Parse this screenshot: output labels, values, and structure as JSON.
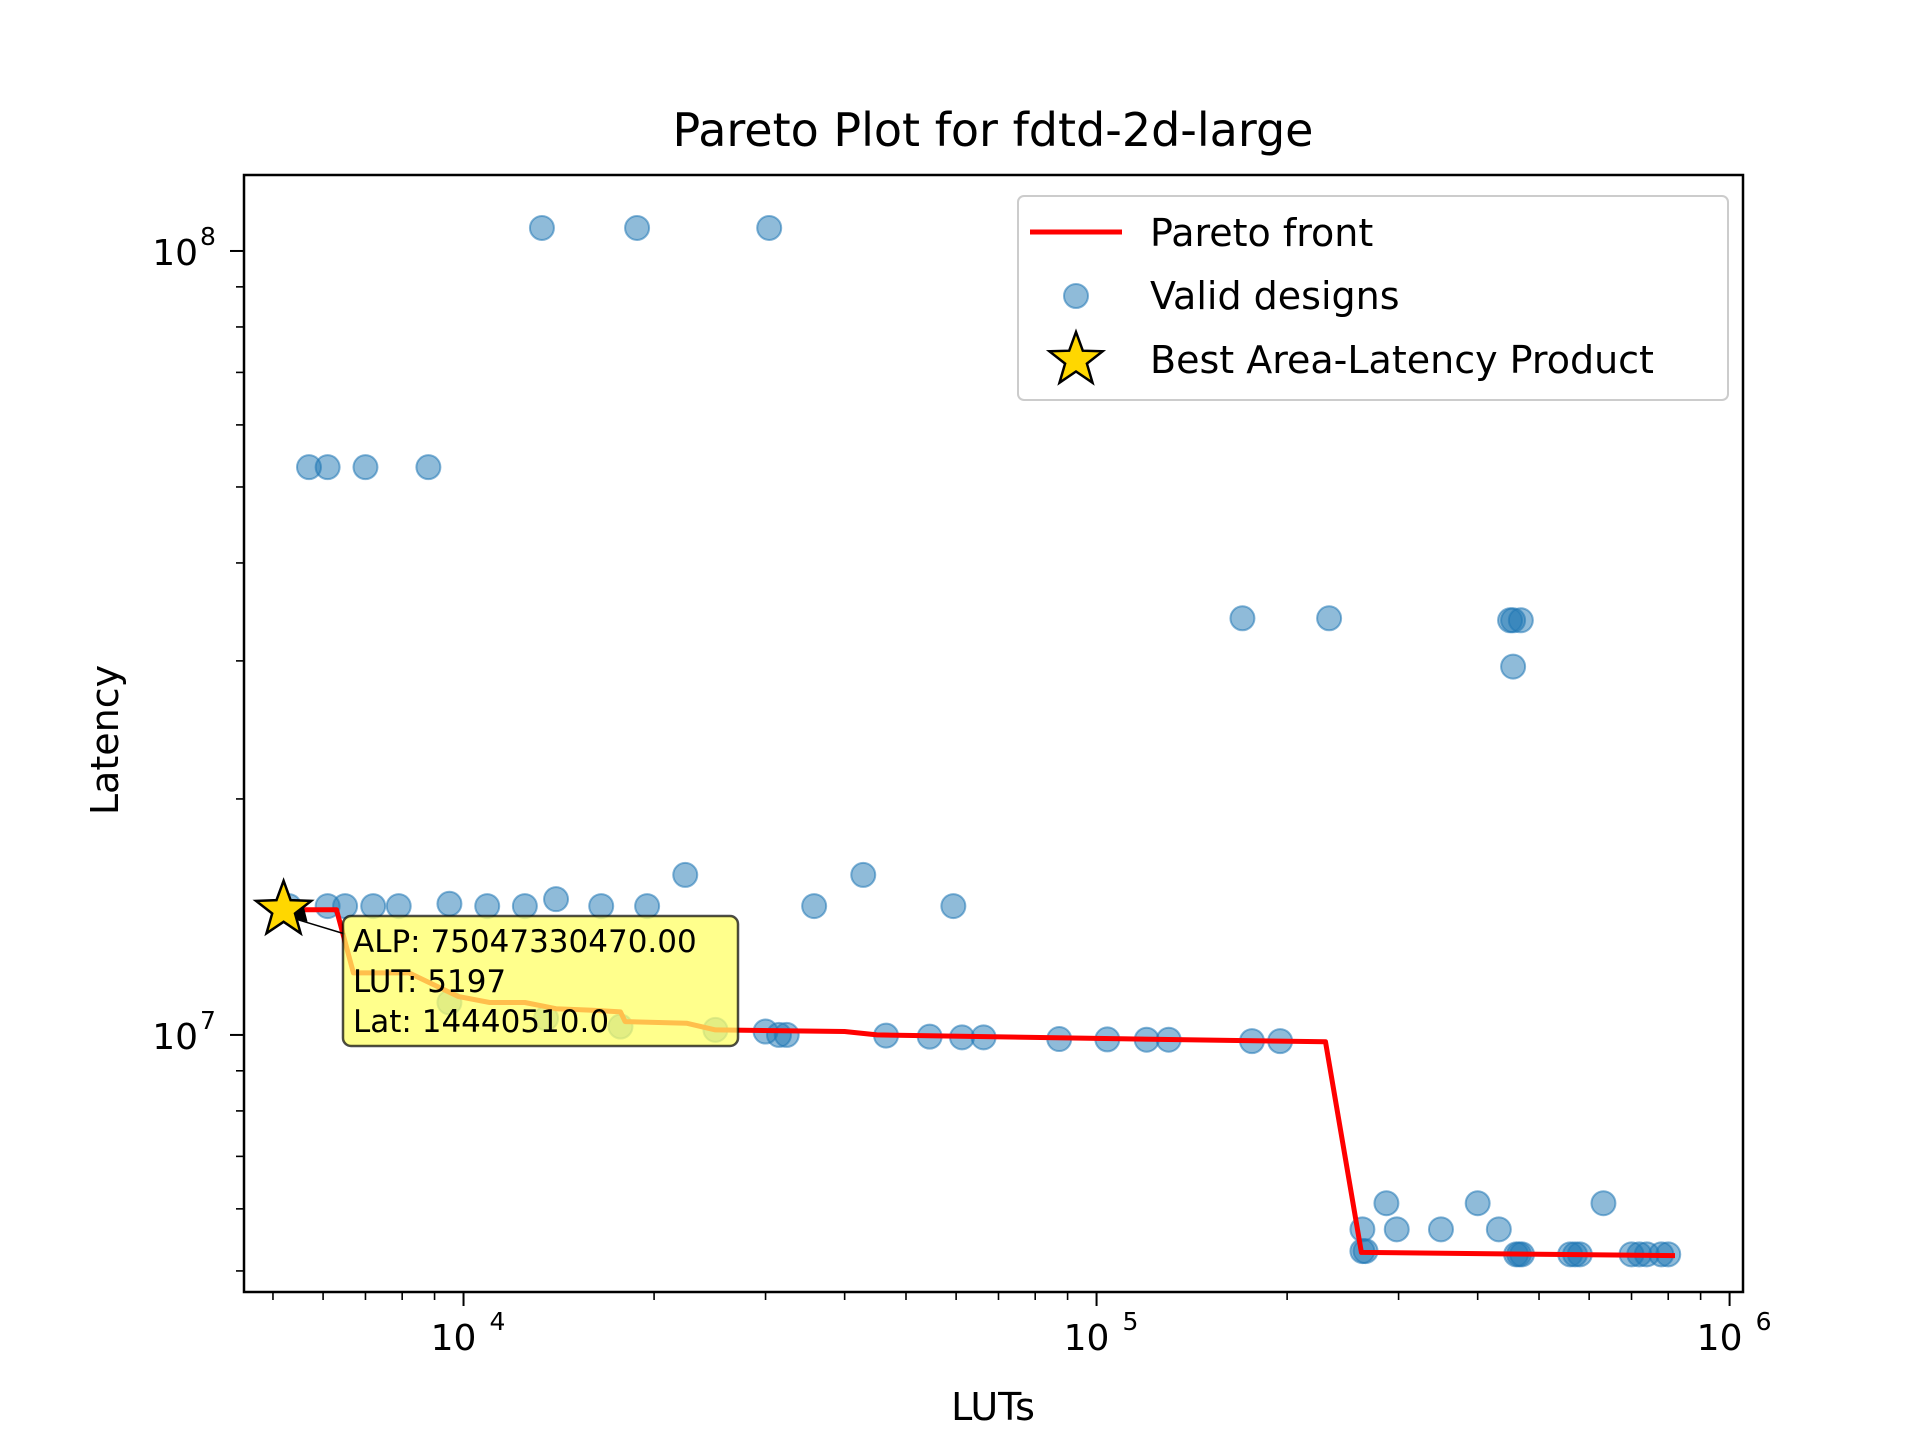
{
  "chart_data": {
    "type": "scatter",
    "title": "Pareto Plot for fdtd-2d-large",
    "xlabel": "LUTs",
    "ylabel": "Latency",
    "xscale": "log",
    "yscale": "log",
    "xlim": [
      4500,
      1050000
    ],
    "ylim": [
      4700000,
      125000000
    ],
    "grid": false,
    "legend_position": "top-right",
    "x_ticks": [
      {
        "value": 10000,
        "base": "10",
        "exp": "4"
      },
      {
        "value": 100000,
        "base": "10",
        "exp": "5"
      },
      {
        "value": 1000000,
        "base": "10",
        "exp": "6"
      }
    ],
    "y_ticks": [
      {
        "value": 10000000,
        "base": "10",
        "exp": "7"
      },
      {
        "value": 100000000,
        "base": "10",
        "exp": "8"
      }
    ],
    "legend": [
      {
        "label": "Pareto front",
        "marker": "line"
      },
      {
        "label": "Valid designs",
        "marker": "circle"
      },
      {
        "label": "Best Area-Latency Product",
        "marker": "star"
      }
    ],
    "colors": {
      "pareto": "#ff0000",
      "valid": "#1f77b4",
      "best": "#ffd700",
      "annotation_bg": "#ffff66"
    },
    "series": [
      {
        "name": "Valid designs",
        "points": [
          [
            13300,
            107000000
          ],
          [
            18800,
            107000000
          ],
          [
            30400,
            107000000
          ],
          [
            5700,
            53000000
          ],
          [
            6100,
            53000000
          ],
          [
            7000,
            53000000
          ],
          [
            8800,
            53000000
          ],
          [
            170000,
            34000000
          ],
          [
            233000,
            34000000
          ],
          [
            450000,
            33800000
          ],
          [
            455000,
            33800000
          ],
          [
            468000,
            33800000
          ],
          [
            455000,
            29500000
          ],
          [
            22400,
            16000000
          ],
          [
            42800,
            16000000
          ],
          [
            5300,
            14600000
          ],
          [
            6100,
            14600000
          ],
          [
            6500,
            14600000
          ],
          [
            7200,
            14600000
          ],
          [
            7900,
            14600000
          ],
          [
            9500,
            14700000
          ],
          [
            10900,
            14600000
          ],
          [
            12500,
            14600000
          ],
          [
            14000,
            14900000
          ],
          [
            16500,
            14600000
          ],
          [
            19500,
            14600000
          ],
          [
            35800,
            14600000
          ],
          [
            59400,
            14600000
          ],
          [
            5197,
            14440510
          ],
          [
            9500,
            11000000
          ],
          [
            13500,
            10500000
          ],
          [
            17700,
            10250000
          ],
          [
            25000,
            10150000
          ],
          [
            30000,
            10100000
          ],
          [
            31500,
            10000000
          ],
          [
            32400,
            10000000
          ],
          [
            46500,
            9980000
          ],
          [
            54500,
            9950000
          ],
          [
            61300,
            9930000
          ],
          [
            66300,
            9930000
          ],
          [
            87300,
            9880000
          ],
          [
            104000,
            9870000
          ],
          [
            120000,
            9860000
          ],
          [
            130000,
            9860000
          ],
          [
            176000,
            9820000
          ],
          [
            195000,
            9820000
          ],
          [
            287000,
            6100000
          ],
          [
            400000,
            6100000
          ],
          [
            632000,
            6100000
          ],
          [
            263000,
            5650000
          ],
          [
            298000,
            5650000
          ],
          [
            350000,
            5650000
          ],
          [
            432000,
            5650000
          ],
          [
            263000,
            5300000
          ],
          [
            266000,
            5300000
          ],
          [
            460000,
            5250000
          ],
          [
            465000,
            5250000
          ],
          [
            470000,
            5250000
          ],
          [
            560000,
            5250000
          ],
          [
            570000,
            5250000
          ],
          [
            580000,
            5250000
          ],
          [
            700000,
            5250000
          ],
          [
            720000,
            5250000
          ],
          [
            740000,
            5250000
          ],
          [
            780000,
            5250000
          ],
          [
            800000,
            5250000
          ]
        ]
      },
      {
        "name": "Pareto front",
        "points": [
          [
            5197,
            14440510
          ],
          [
            6300,
            14440510
          ],
          [
            6700,
            12000000
          ],
          [
            8200,
            12000000
          ],
          [
            9800,
            11200000
          ],
          [
            11000,
            11000000
          ],
          [
            12500,
            11000000
          ],
          [
            14000,
            10800000
          ],
          [
            16000,
            10750000
          ],
          [
            17700,
            10700000
          ],
          [
            18000,
            10400000
          ],
          [
            22500,
            10350000
          ],
          [
            25000,
            10150000
          ],
          [
            40000,
            10100000
          ],
          [
            45000,
            10000000
          ],
          [
            100000,
            9900000
          ],
          [
            230000,
            9800000
          ],
          [
            262000,
            5280000
          ],
          [
            500000,
            5250000
          ],
          [
            820000,
            5230000
          ]
        ]
      },
      {
        "name": "Best Area-Latency Product",
        "points": [
          [
            5197,
            14440510
          ]
        ]
      }
    ],
    "annotation": {
      "lines": [
        "ALP: 75047330470.00",
        "LUT: 5197",
        "Lat: 14440510.0"
      ]
    }
  }
}
